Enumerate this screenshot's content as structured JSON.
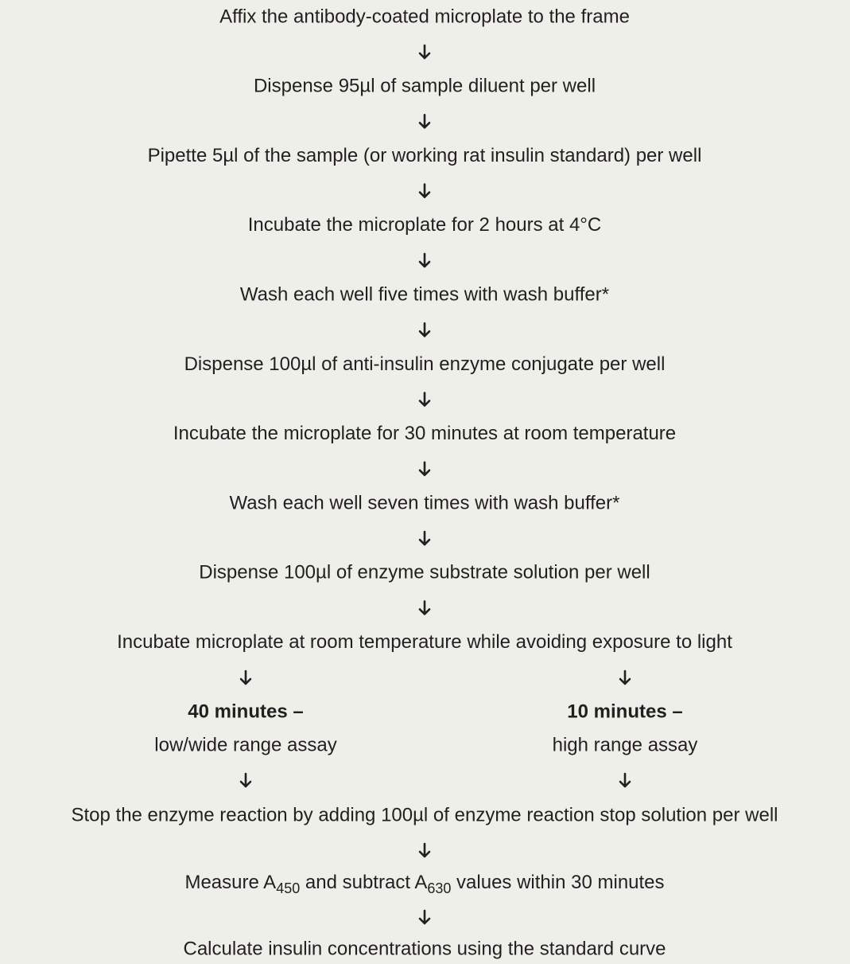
{
  "steps": [
    "Affix the antibody-coated microplate to the frame",
    "Dispense 95µl of sample diluent per well",
    "Pipette 5µl of the sample (or working rat insulin standard) per well",
    "Incubate the microplate for 2 hours at 4°C",
    "Wash each well five times with wash buffer*",
    "Dispense 100µl of anti-insulin enzyme conjugate per well",
    "Incubate the microplate for 30 minutes at room temperature",
    "Wash each well seven times with wash buffer*",
    "Dispense 100µl of enzyme substrate solution per well",
    "Incubate microplate at room temperature while avoiding exposure to light"
  ],
  "branches": [
    {
      "time": "40 minutes –",
      "label": "low/wide range assay"
    },
    {
      "time": "10 minutes –",
      "label": "high range assay"
    }
  ],
  "final_steps": {
    "stop": "Stop the enzyme reaction by adding 100µl of enzyme reaction stop solution per well",
    "measure": {
      "text1": "Measure A",
      "sub1": "450",
      "text2": " and subtract A",
      "sub2": "630",
      "text3": " values within 30 minutes"
    },
    "calculate": "Calculate insulin concentrations using the standard curve"
  }
}
